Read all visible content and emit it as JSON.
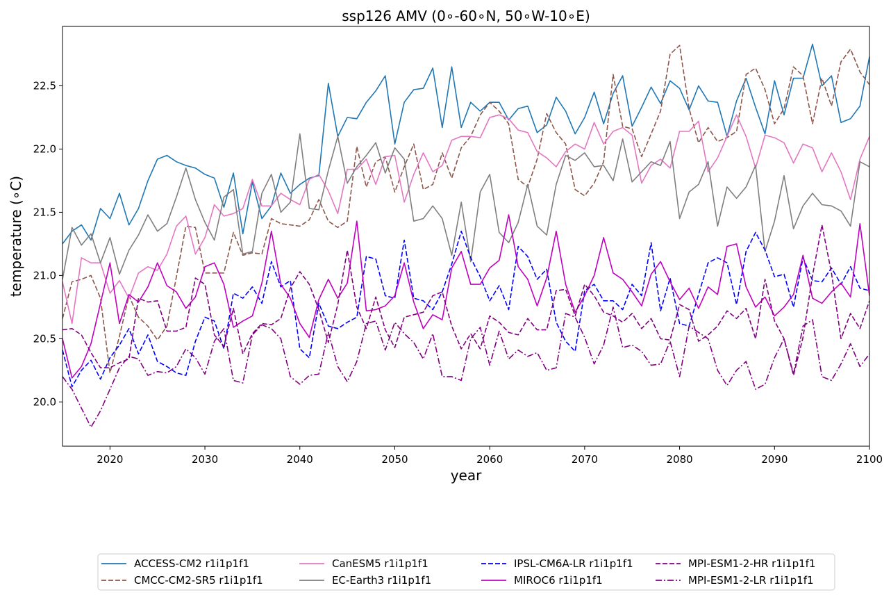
{
  "chart_data": {
    "type": "line",
    "title": "ssp126 AMV (0$^\\circ$-60$^\\circ$N, 50$^\\circ$W-10$^\\circ$E)",
    "title_display": "ssp126 AMV (0∘-60∘N, 50∘W-10∘E)",
    "xlabel": "year",
    "ylabel": "temperature (∘C)",
    "xlim": [
      2015,
      2100
    ],
    "ylim": [
      19.65,
      22.97
    ],
    "xticks": [
      2020,
      2030,
      2040,
      2050,
      2060,
      2070,
      2080,
      2090,
      2100
    ],
    "yticks": [
      20.0,
      20.5,
      21.0,
      21.5,
      22.0,
      22.5
    ],
    "ytick_labels": [
      "20.0",
      "20.5",
      "21.0",
      "21.5",
      "22.0",
      "22.5"
    ],
    "grid": false,
    "legend_placement": "below plot, 4 columns",
    "x_start": 2015,
    "series": [
      {
        "name": "ACCESS-CM2 r1i1p1f1",
        "color": "#1f77b4",
        "dash": "solid",
        "values": [
          21.25,
          21.35,
          21.4,
          21.28,
          21.53,
          21.45,
          21.65,
          21.4,
          21.53,
          21.75,
          21.92,
          21.95,
          21.9,
          21.87,
          21.85,
          21.8,
          21.77,
          21.54,
          21.81,
          21.33,
          21.74,
          21.45,
          21.55,
          21.81,
          21.65,
          21.72,
          21.77,
          21.79,
          22.52,
          22.1,
          22.25,
          22.24,
          22.37,
          22.46,
          22.58,
          22.04,
          22.37,
          22.47,
          22.48,
          22.64,
          22.17,
          22.65,
          22.17,
          22.37,
          22.3,
          22.37,
          22.37,
          22.23,
          22.32,
          22.34,
          22.13,
          22.19,
          22.41,
          22.3,
          22.12,
          22.25,
          22.45,
          22.2,
          22.44,
          22.58,
          22.18,
          22.33,
          22.49,
          22.36,
          22.54,
          22.48,
          22.31,
          22.5,
          22.38,
          22.37,
          22.1,
          22.38,
          22.56,
          22.33,
          22.12,
          22.54,
          22.27,
          22.56,
          22.56,
          22.83,
          22.5,
          22.58,
          22.21,
          22.24,
          22.34,
          22.73
        ]
      },
      {
        "name": "CMCC-CM2-SR5 r1i1p1f1",
        "color": "#8c564b",
        "dash": "dashed",
        "values": [
          20.66,
          20.95,
          20.97,
          21.0,
          20.82,
          20.23,
          20.52,
          20.84,
          20.67,
          20.6,
          20.49,
          20.6,
          20.99,
          21.39,
          21.38,
          21.02,
          21.02,
          21.02,
          21.34,
          21.16,
          21.18,
          21.17,
          21.45,
          21.41,
          21.4,
          21.39,
          21.44,
          21.6,
          21.43,
          21.38,
          21.43,
          22.02,
          21.7,
          21.9,
          21.94,
          21.66,
          21.86,
          22.04,
          21.68,
          21.72,
          21.97,
          21.77,
          22.01,
          22.1,
          22.27,
          22.37,
          22.3,
          22.2,
          21.76,
          21.7,
          21.92,
          22.28,
          22.13,
          22.04,
          21.68,
          21.63,
          21.73,
          21.9,
          22.59,
          22.18,
          22.16,
          21.94,
          22.12,
          22.3,
          22.75,
          22.82,
          22.32,
          22.05,
          22.17,
          22.06,
          22.09,
          22.14,
          22.59,
          22.64,
          22.47,
          22.2,
          22.32,
          22.65,
          22.58,
          22.2,
          22.56,
          22.34,
          22.69,
          22.79,
          22.61,
          22.51
        ]
      },
      {
        "name": "CanESM5 r1i1p1f1",
        "color": "#e377c2",
        "dash": "solid",
        "values": [
          20.95,
          20.62,
          21.14,
          21.1,
          21.1,
          20.86,
          20.96,
          20.82,
          21.02,
          21.07,
          21.04,
          21.17,
          21.39,
          21.47,
          21.17,
          21.3,
          21.56,
          21.47,
          21.49,
          21.53,
          21.76,
          21.55,
          21.55,
          21.65,
          21.6,
          21.56,
          21.76,
          21.8,
          21.67,
          21.49,
          21.84,
          21.84,
          21.92,
          21.72,
          21.94,
          21.95,
          21.58,
          21.8,
          21.97,
          21.82,
          21.87,
          22.07,
          22.1,
          22.1,
          22.09,
          22.25,
          22.27,
          22.24,
          22.15,
          22.13,
          21.98,
          21.93,
          21.86,
          21.98,
          22.04,
          22.0,
          22.21,
          22.04,
          22.14,
          22.17,
          22.11,
          21.73,
          21.87,
          21.92,
          21.85,
          22.14,
          22.14,
          22.22,
          21.82,
          21.93,
          22.1,
          22.27,
          22.1,
          21.85,
          22.11,
          22.09,
          22.05,
          21.89,
          22.04,
          22.01,
          21.82,
          21.97,
          21.82,
          21.6,
          21.92,
          22.1
        ]
      },
      {
        "name": "EC-Earth3 r1i1p1f1",
        "color": "#7f7f7f",
        "dash": "solid",
        "values": [
          20.97,
          21.38,
          21.24,
          21.33,
          21.1,
          21.3,
          21.01,
          21.2,
          21.32,
          21.48,
          21.35,
          21.41,
          21.62,
          21.85,
          21.6,
          21.42,
          21.28,
          21.62,
          21.68,
          21.17,
          21.19,
          21.65,
          21.8,
          21.5,
          21.58,
          22.12,
          21.53,
          21.52,
          21.83,
          22.1,
          21.73,
          21.86,
          21.95,
          22.05,
          21.81,
          22.01,
          21.92,
          21.43,
          21.45,
          21.55,
          21.45,
          21.16,
          21.58,
          21.11,
          21.66,
          21.8,
          21.34,
          21.26,
          21.42,
          21.72,
          21.39,
          21.32,
          21.72,
          21.95,
          21.91,
          21.97,
          21.86,
          21.87,
          21.75,
          22.08,
          21.74,
          21.82,
          21.9,
          21.87,
          22.06,
          21.45,
          21.66,
          21.72,
          21.9,
          21.39,
          21.7,
          21.61,
          21.7,
          21.87,
          21.19,
          21.43,
          21.79,
          21.37,
          21.55,
          21.65,
          21.56,
          21.55,
          21.51,
          21.39,
          21.9,
          21.86
        ]
      },
      {
        "name": "IPSL-CM6A-LR r1i1p1f1",
        "color": "#0000ff",
        "dash": "dashed",
        "values": [
          20.41,
          20.12,
          20.25,
          20.33,
          20.18,
          20.35,
          20.45,
          20.58,
          20.38,
          20.53,
          20.32,
          20.28,
          20.23,
          20.21,
          20.48,
          20.67,
          20.64,
          20.42,
          20.86,
          20.82,
          20.91,
          20.78,
          21.11,
          20.91,
          20.96,
          20.42,
          20.35,
          20.78,
          20.6,
          20.58,
          20.63,
          20.67,
          21.15,
          21.13,
          20.84,
          20.82,
          21.28,
          20.82,
          20.8,
          20.73,
          20.87,
          21.09,
          21.35,
          21.14,
          20.99,
          20.8,
          20.92,
          20.73,
          21.23,
          21.15,
          20.97,
          21.05,
          20.63,
          20.48,
          20.4,
          20.88,
          20.93,
          20.8,
          20.8,
          20.73,
          20.93,
          20.84,
          21.26,
          20.72,
          20.98,
          20.62,
          20.6,
          20.85,
          21.1,
          21.14,
          21.1,
          20.77,
          21.19,
          21.34,
          21.2,
          20.99,
          21.01,
          20.75,
          21.14,
          20.96,
          20.95,
          21.06,
          20.93,
          21.07,
          20.9,
          20.88
        ]
      },
      {
        "name": "MIROC6 r1i1p1f1",
        "color": "#bf00bf",
        "dash": "solid",
        "values": [
          20.5,
          20.19,
          20.28,
          20.46,
          20.78,
          21.1,
          20.62,
          20.85,
          20.79,
          20.91,
          21.1,
          20.92,
          20.87,
          20.74,
          20.83,
          21.07,
          21.1,
          20.93,
          20.59,
          20.64,
          20.68,
          20.94,
          21.35,
          20.93,
          20.82,
          20.62,
          20.51,
          20.81,
          20.97,
          20.82,
          20.94,
          21.43,
          20.72,
          20.73,
          20.76,
          20.84,
          21.1,
          20.79,
          20.58,
          20.69,
          20.65,
          21.06,
          21.19,
          20.93,
          20.93,
          21.06,
          21.12,
          21.48,
          21.07,
          20.97,
          20.76,
          20.98,
          21.35,
          20.93,
          20.71,
          20.84,
          21.0,
          21.3,
          21.02,
          20.97,
          20.87,
          20.76,
          21.01,
          21.11,
          20.95,
          20.81,
          20.9,
          20.74,
          20.91,
          20.85,
          21.23,
          21.25,
          20.91,
          20.75,
          20.83,
          20.68,
          20.75,
          20.85,
          21.16,
          20.82,
          20.78,
          20.87,
          20.94,
          20.83,
          21.41,
          20.84
        ]
      },
      {
        "name": "MPI-ESM1-2-HR r1i1p1f1",
        "color": "#800080",
        "dash": "dashed",
        "values": [
          20.57,
          20.58,
          20.53,
          20.39,
          20.27,
          20.27,
          20.31,
          20.34,
          20.82,
          20.79,
          20.8,
          20.56,
          20.56,
          20.59,
          20.98,
          20.93,
          20.53,
          20.44,
          20.74,
          20.38,
          20.54,
          20.62,
          20.61,
          20.66,
          20.9,
          21.03,
          20.93,
          20.73,
          20.47,
          20.77,
          21.2,
          20.75,
          20.58,
          20.83,
          20.57,
          20.43,
          20.67,
          20.69,
          20.71,
          20.84,
          20.87,
          20.6,
          20.42,
          20.54,
          20.42,
          20.68,
          20.63,
          20.55,
          20.53,
          20.66,
          20.57,
          20.57,
          20.88,
          20.89,
          20.68,
          20.93,
          20.84,
          20.71,
          20.68,
          20.63,
          20.7,
          20.58,
          20.66,
          20.5,
          20.49,
          20.77,
          20.73,
          20.48,
          20.53,
          20.6,
          20.72,
          20.66,
          20.74,
          20.5,
          20.97,
          20.64,
          20.5,
          20.21,
          20.51,
          21.0,
          21.4,
          21.02,
          20.5,
          20.7,
          20.58,
          20.8
        ]
      },
      {
        "name": "MPI-ESM1-2-LR r1i1p1f1",
        "color": "#800080",
        "dash": "dashdot",
        "values": [
          20.2,
          20.1,
          19.95,
          19.8,
          19.93,
          20.1,
          20.27,
          20.36,
          20.34,
          20.21,
          20.24,
          20.23,
          20.28,
          20.42,
          20.35,
          20.22,
          20.48,
          20.58,
          20.17,
          20.15,
          20.53,
          20.61,
          20.58,
          20.5,
          20.2,
          20.14,
          20.21,
          20.22,
          20.55,
          20.28,
          20.16,
          20.32,
          20.62,
          20.64,
          20.41,
          20.63,
          20.54,
          20.47,
          20.34,
          20.54,
          20.2,
          20.2,
          20.17,
          20.5,
          20.59,
          20.29,
          20.56,
          20.34,
          20.41,
          20.36,
          20.39,
          20.25,
          20.27,
          20.7,
          20.67,
          20.51,
          20.3,
          20.45,
          20.75,
          20.43,
          20.45,
          20.4,
          20.29,
          20.3,
          20.48,
          20.2,
          20.6,
          20.55,
          20.5,
          20.25,
          20.13,
          20.25,
          20.32,
          20.1,
          20.14,
          20.35,
          20.5,
          20.22,
          20.6,
          20.65,
          20.2,
          20.17,
          20.3,
          20.46,
          20.28,
          20.38
        ]
      }
    ]
  }
}
